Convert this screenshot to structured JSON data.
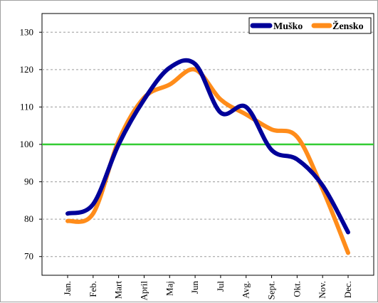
{
  "chart_data": {
    "type": "line",
    "title": "",
    "xlabel": "",
    "ylabel": "",
    "categories": [
      "Jan.",
      "Feb.",
      "Mart",
      "April",
      "Maj",
      "Jun",
      "Jul",
      "Avg.",
      "Sept.",
      "Okt.",
      "Nov.",
      "Dec."
    ],
    "ylim": [
      65,
      135
    ],
    "yticks": [
      70,
      80,
      90,
      100,
      110,
      120,
      130
    ],
    "grid": "horizontal dashed",
    "legend_position": "top-right",
    "reference_line": {
      "value": 100,
      "color": "#33cc33"
    },
    "series": [
      {
        "name": "Muško",
        "color": "#000099",
        "values": [
          81.5,
          84,
          100,
          112,
          120.5,
          121.5,
          108.5,
          110,
          98.5,
          96,
          89,
          76.5
        ]
      },
      {
        "name": "Žensko",
        "color": "#ff8c1a",
        "values": [
          79.5,
          81.5,
          101,
          112.5,
          116,
          120,
          112,
          108,
          104,
          102,
          88,
          71
        ]
      }
    ]
  }
}
